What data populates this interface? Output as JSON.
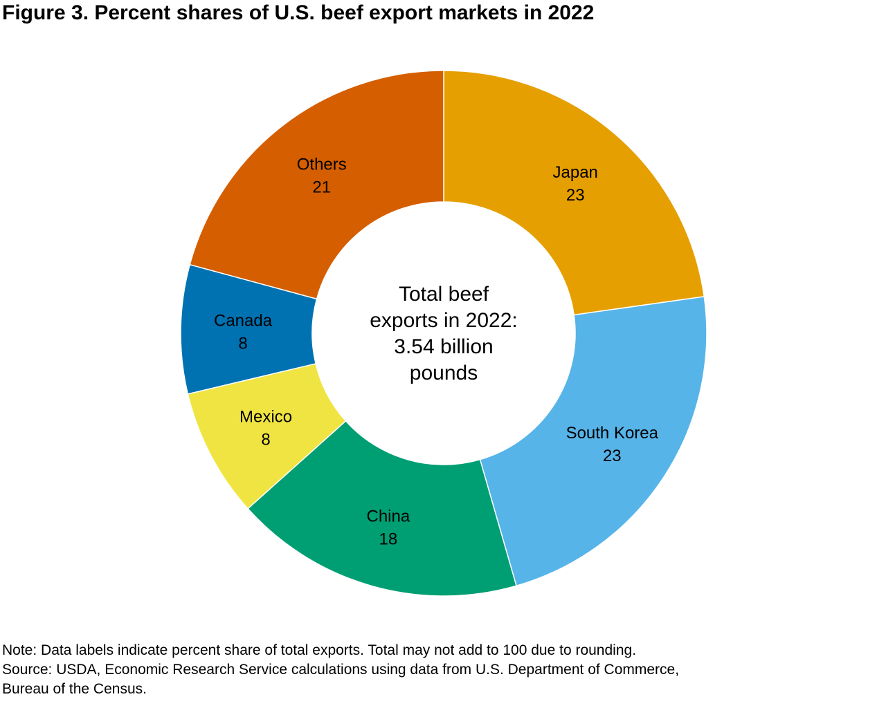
{
  "title": "Figure 3. Percent shares of U.S. beef export markets in 2022",
  "chart_data": {
    "type": "pie",
    "variant": "donut",
    "center_label": [
      "Total beef",
      "exports in 2022:",
      "3.54 billion",
      "pounds"
    ],
    "slices": [
      {
        "label": "Japan",
        "value": 23,
        "color": "#E69F00"
      },
      {
        "label": "South Korea",
        "value": 23,
        "color": "#56B4E9"
      },
      {
        "label": "China",
        "value": 18,
        "color": "#009E73"
      },
      {
        "label": "Mexico",
        "value": 8,
        "color": "#F0E442"
      },
      {
        "label": "Canada",
        "value": 8,
        "color": "#0072B2"
      },
      {
        "label": "Others",
        "value": 21,
        "color": "#D55E00"
      }
    ],
    "start": "12 o'clock",
    "direction": "clockwise"
  },
  "notes": {
    "note": "Note: Data labels indicate percent share of total exports. Total may not add to 100 due to rounding.",
    "source_line1": "Source: USDA, Economic Research Service calculations using data from U.S. Department of Commerce,",
    "source_line2": "Bureau of the Census."
  }
}
